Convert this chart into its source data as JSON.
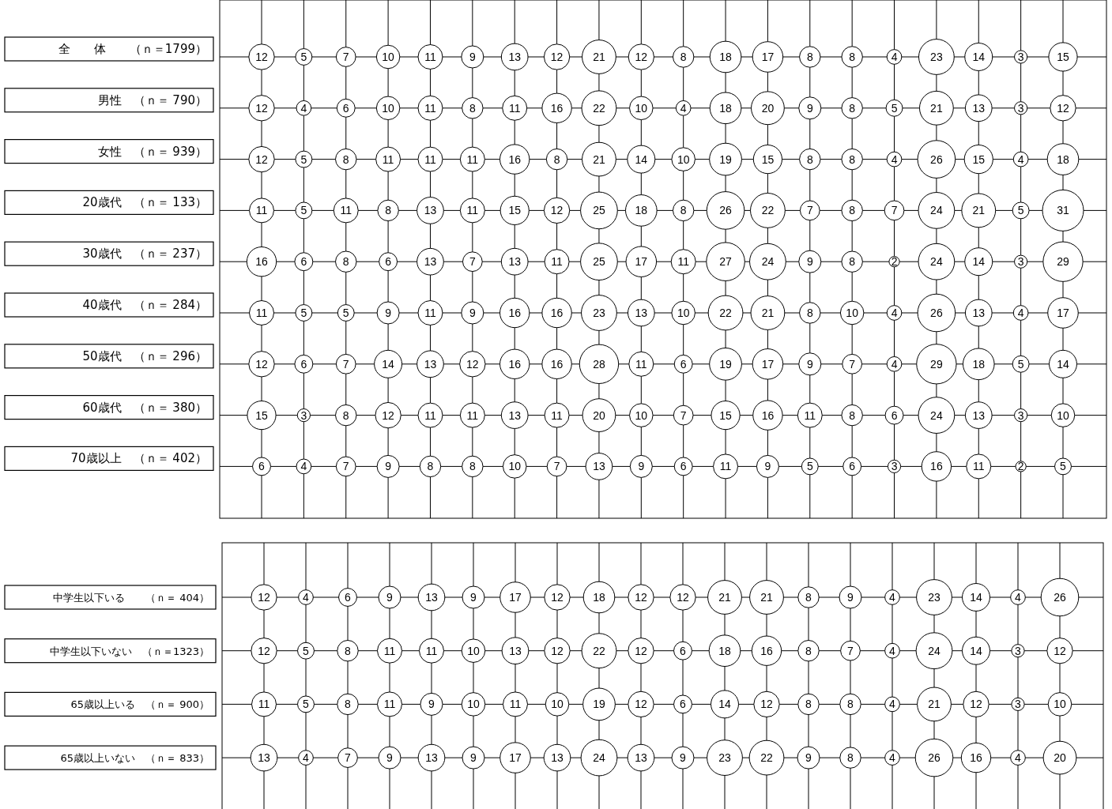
{
  "chart_data": [
    {
      "type": "heatmap",
      "categories": [
        null,
        null,
        null,
        null,
        null,
        null,
        null,
        null,
        null,
        null,
        null,
        null,
        null,
        null,
        null,
        null,
        null,
        null,
        null,
        null
      ],
      "y_categories": [
        "全　　体　　（ｎ＝1799）",
        "男性　（ｎ＝ 790）",
        "女性　（ｎ＝ 939）",
        "20歳代　（ｎ＝ 133）",
        "30歳代　（ｎ＝ 237）",
        "40歳代　（ｎ＝ 284）",
        "50歳代　（ｎ＝ 296）",
        "60歳代　（ｎ＝ 380）",
        "70歳以上　（ｎ＝ 402）"
      ],
      "cells": [
        [
          12,
          5,
          7,
          10,
          11,
          9,
          13,
          12,
          21,
          12,
          8,
          18,
          17,
          8,
          8,
          4,
          23,
          14,
          3,
          15
        ],
        [
          12,
          4,
          6,
          10,
          11,
          8,
          11,
          16,
          22,
          10,
          4,
          18,
          20,
          9,
          8,
          5,
          21,
          13,
          3,
          12
        ],
        [
          12,
          5,
          8,
          11,
          11,
          11,
          16,
          8,
          21,
          14,
          10,
          19,
          15,
          8,
          8,
          4,
          26,
          15,
          4,
          18
        ],
        [
          11,
          5,
          11,
          8,
          13,
          11,
          15,
          12,
          25,
          18,
          8,
          26,
          22,
          7,
          8,
          7,
          24,
          21,
          5,
          31
        ],
        [
          16,
          6,
          8,
          6,
          13,
          7,
          13,
          11,
          25,
          17,
          11,
          27,
          24,
          9,
          8,
          2,
          24,
          14,
          3,
          29
        ],
        [
          11,
          5,
          5,
          9,
          11,
          9,
          16,
          16,
          23,
          13,
          10,
          22,
          21,
          8,
          10,
          4,
          26,
          13,
          4,
          17
        ],
        [
          12,
          6,
          7,
          14,
          13,
          12,
          16,
          16,
          28,
          11,
          6,
          19,
          17,
          9,
          7,
          4,
          29,
          18,
          5,
          14
        ],
        [
          15,
          3,
          8,
          12,
          11,
          11,
          13,
          11,
          20,
          10,
          7,
          15,
          16,
          11,
          8,
          6,
          24,
          13,
          3,
          10
        ],
        [
          6,
          4,
          7,
          9,
          8,
          8,
          10,
          7,
          13,
          9,
          6,
          11,
          9,
          5,
          6,
          3,
          16,
          11,
          2,
          5
        ]
      ],
      "data_labels": true,
      "grid": true
    },
    {
      "type": "heatmap",
      "categories": [
        null,
        null,
        null,
        null,
        null,
        null,
        null,
        null,
        null,
        null,
        null,
        null,
        null,
        null,
        null,
        null,
        null,
        null,
        null,
        null
      ],
      "y_categories": [
        "中学生以下いる　　（ｎ＝ 404）",
        "中学生以下いない　（ｎ＝1323）",
        "65歳以上いる　（ｎ＝ 900）",
        "65歳以上いない　（ｎ＝ 833）"
      ],
      "cells": [
        [
          12,
          4,
          6,
          9,
          13,
          9,
          17,
          12,
          18,
          12,
          12,
          21,
          21,
          8,
          9,
          4,
          23,
          14,
          4,
          26
        ],
        [
          12,
          5,
          8,
          11,
          11,
          10,
          13,
          12,
          22,
          12,
          6,
          18,
          16,
          8,
          7,
          4,
          24,
          14,
          3,
          12
        ],
        [
          11,
          5,
          8,
          11,
          9,
          10,
          11,
          10,
          19,
          12,
          6,
          14,
          12,
          8,
          8,
          4,
          21,
          12,
          3,
          10
        ],
        [
          13,
          4,
          7,
          9,
          13,
          9,
          17,
          13,
          24,
          13,
          9,
          23,
          22,
          9,
          8,
          4,
          26,
          16,
          4,
          20
        ]
      ],
      "data_labels": true,
      "grid": true
    }
  ]
}
